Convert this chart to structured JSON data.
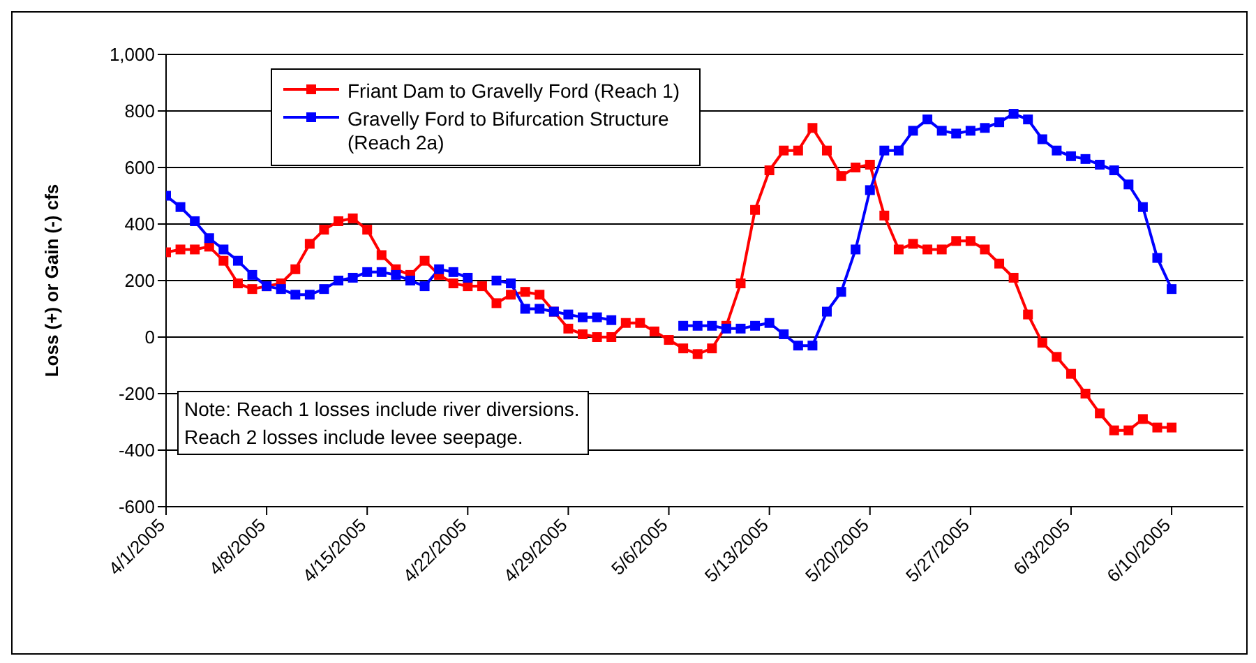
{
  "chart_data": {
    "type": "line",
    "ylabel": "Loss (+) or Gain (-) cfs",
    "x": [
      "2005-04-01",
      "2005-04-02",
      "2005-04-03",
      "2005-04-04",
      "2005-04-05",
      "2005-04-06",
      "2005-04-07",
      "2005-04-08",
      "2005-04-09",
      "2005-04-10",
      "2005-04-11",
      "2005-04-12",
      "2005-04-13",
      "2005-04-14",
      "2005-04-15",
      "2005-04-16",
      "2005-04-17",
      "2005-04-18",
      "2005-04-19",
      "2005-04-20",
      "2005-04-21",
      "2005-04-22",
      "2005-04-23",
      "2005-04-24",
      "2005-04-25",
      "2005-04-26",
      "2005-04-27",
      "2005-04-28",
      "2005-04-29",
      "2005-04-30",
      "2005-05-01",
      "2005-05-02",
      "2005-05-03",
      "2005-05-04",
      "2005-05-05",
      "2005-05-06",
      "2005-05-07",
      "2005-05-08",
      "2005-05-09",
      "2005-05-10",
      "2005-05-11",
      "2005-05-12",
      "2005-05-13",
      "2005-05-14",
      "2005-05-15",
      "2005-05-16",
      "2005-05-17",
      "2005-05-18",
      "2005-05-19",
      "2005-05-20",
      "2005-05-21",
      "2005-05-22",
      "2005-05-23",
      "2005-05-24",
      "2005-05-25",
      "2005-05-26",
      "2005-05-27",
      "2005-05-28",
      "2005-05-29",
      "2005-05-30",
      "2005-05-31",
      "2005-06-01",
      "2005-06-02",
      "2005-06-03",
      "2005-06-04",
      "2005-06-05",
      "2005-06-06",
      "2005-06-07",
      "2005-06-08",
      "2005-06-09",
      "2005-06-10"
    ],
    "series": [
      {
        "name": "Friant Dam to Gravelly Ford (Reach 1)",
        "color": "#ff0000",
        "values": [
          300,
          310,
          310,
          320,
          270,
          190,
          170,
          180,
          190,
          240,
          330,
          380,
          410,
          420,
          380,
          290,
          240,
          220,
          270,
          220,
          190,
          180,
          180,
          120,
          150,
          160,
          150,
          90,
          30,
          10,
          0,
          0,
          50,
          50,
          20,
          -10,
          -40,
          -60,
          -40,
          40,
          190,
          450,
          590,
          660,
          660,
          740,
          660,
          570,
          600,
          610,
          430,
          310,
          330,
          310,
          310,
          340,
          340,
          310,
          260,
          210,
          80,
          -20,
          -70,
          -130,
          -200,
          -270,
          -330,
          -330,
          -290,
          -320,
          -320
        ]
      },
      {
        "name": "Gravelly Ford to Bifurcation Structure (Reach 2a)",
        "color": "#0000ff",
        "values": [
          500,
          460,
          410,
          350,
          310,
          270,
          220,
          180,
          170,
          150,
          150,
          170,
          200,
          210,
          230,
          230,
          220,
          200,
          180,
          240,
          230,
          210,
          null,
          200,
          190,
          100,
          100,
          90,
          80,
          70,
          70,
          60,
          null,
          null,
          null,
          null,
          40,
          40,
          40,
          30,
          30,
          40,
          50,
          10,
          -30,
          -30,
          90,
          160,
          310,
          520,
          660,
          660,
          730,
          770,
          730,
          720,
          730,
          740,
          760,
          790,
          770,
          700,
          660,
          640,
          630,
          610,
          590,
          540,
          460,
          280,
          170
        ]
      }
    ],
    "xlim": [
      "2005-04-01",
      "2005-06-15"
    ],
    "xticks": [
      {
        "value": "2005-04-01",
        "label": "4/1/2005"
      },
      {
        "value": "2005-04-08",
        "label": "4/8/2005"
      },
      {
        "value": "2005-04-15",
        "label": "4/15/2005"
      },
      {
        "value": "2005-04-22",
        "label": "4/22/2005"
      },
      {
        "value": "2005-04-29",
        "label": "4/29/2005"
      },
      {
        "value": "2005-05-06",
        "label": "5/6/2005"
      },
      {
        "value": "2005-05-13",
        "label": "5/13/2005"
      },
      {
        "value": "2005-05-20",
        "label": "5/20/2005"
      },
      {
        "value": "2005-05-27",
        "label": "5/27/2005"
      },
      {
        "value": "2005-06-03",
        "label": "6/3/2005"
      },
      {
        "value": "2005-06-10",
        "label": "6/10/2005"
      }
    ],
    "ylim": [
      -600,
      1000
    ],
    "yticks": [
      {
        "value": -600,
        "label": "-600"
      },
      {
        "value": -400,
        "label": "-400"
      },
      {
        "value": -200,
        "label": "-200"
      },
      {
        "value": 0,
        "label": "0"
      },
      {
        "value": 200,
        "label": "200"
      },
      {
        "value": 400,
        "label": "400"
      },
      {
        "value": 600,
        "label": "600"
      },
      {
        "value": 800,
        "label": "800"
      },
      {
        "value": 1000,
        "label": "1,000"
      }
    ],
    "grid": "y",
    "legend": "top left",
    "marker": "square",
    "line_style": "solid",
    "annotations": [
      "Note: Reach 1 losses include river diversions.  Reach 2 losses include levee seepage."
    ]
  }
}
